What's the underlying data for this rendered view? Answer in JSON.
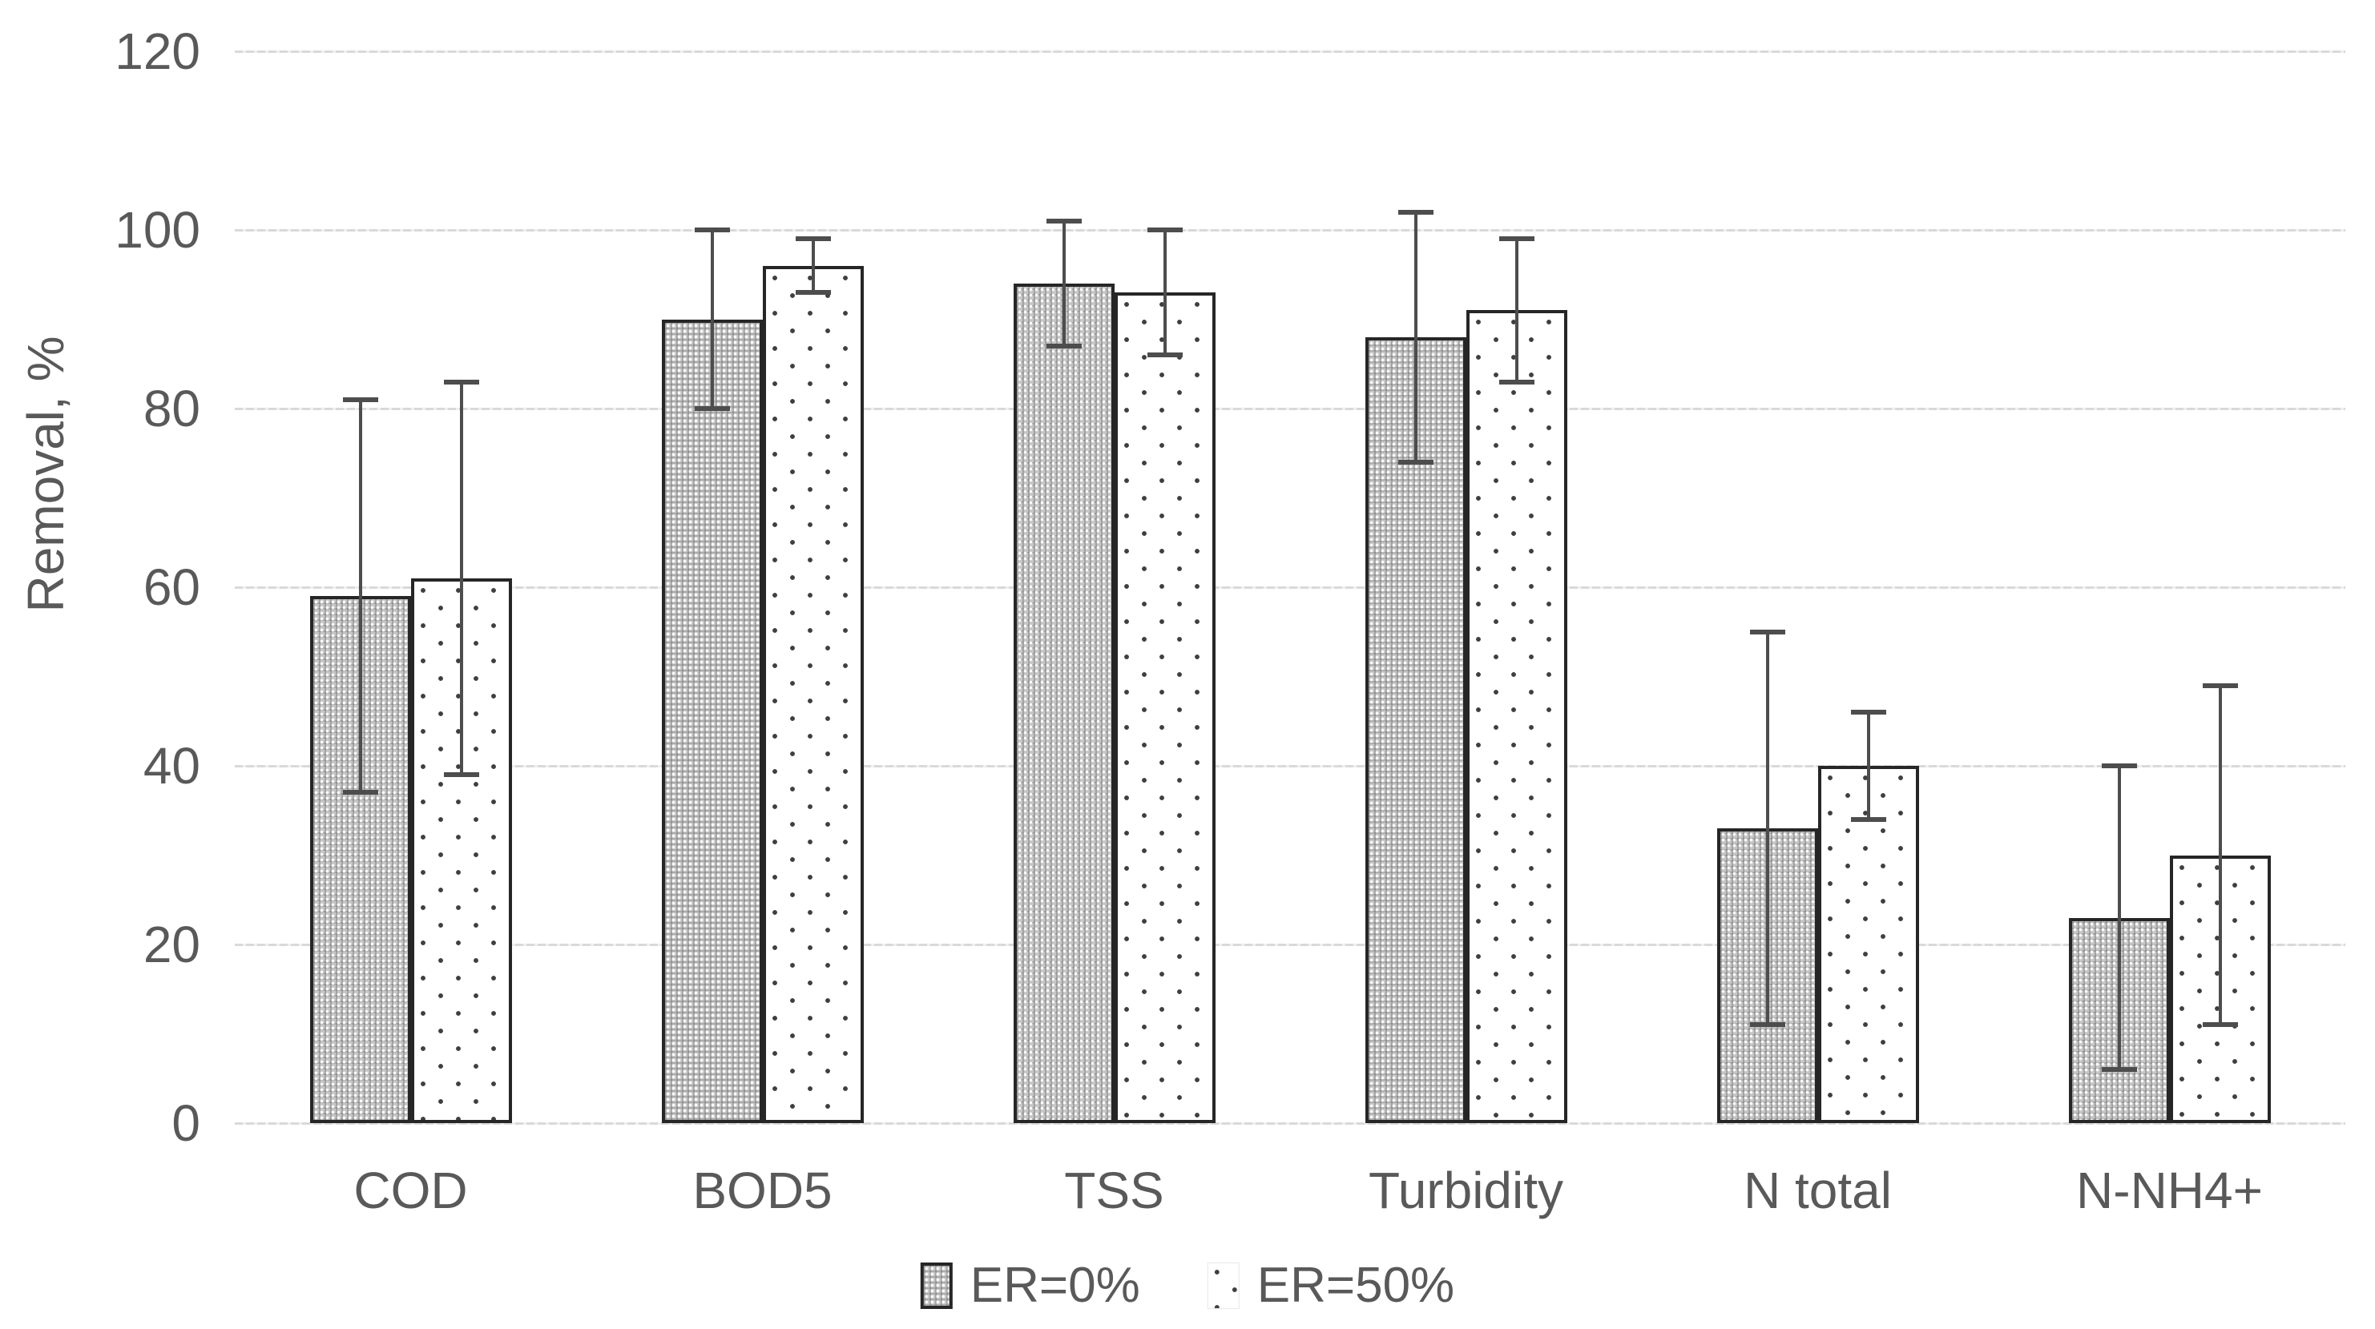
{
  "chart_data": {
    "type": "bar",
    "title": "",
    "xlabel": "",
    "ylabel": "Removal, %",
    "ylim": [
      0,
      120
    ],
    "ytick_step": 20,
    "ytick_labels": [
      "0",
      "20",
      "40",
      "60",
      "80",
      "100",
      "120"
    ],
    "grid": "horizontal",
    "legend_position": "bottom-center",
    "categories": [
      "COD",
      "BOD5",
      "TSS",
      "Turbidity",
      "N total",
      "N-NH4+"
    ],
    "series": [
      {
        "name": "ER=0%",
        "pattern": "gray-weave",
        "values": [
          59,
          90,
          94,
          88,
          33,
          23
        ],
        "err_low": [
          37,
          80,
          87,
          74,
          11,
          6
        ],
        "err_high": [
          81,
          100,
          101,
          102,
          55,
          40
        ]
      },
      {
        "name": "ER=50%",
        "pattern": "white-dots",
        "values": [
          61,
          96,
          93,
          91,
          40,
          30
        ],
        "err_low": [
          39,
          93,
          86,
          83,
          34,
          11
        ],
        "err_high": [
          83,
          99,
          100,
          99,
          46,
          49
        ]
      }
    ]
  },
  "colors": {
    "text": "#595959",
    "gridline": "#d9d9d9",
    "bar_border": "#262626",
    "error_bar": "#4d4d4d",
    "series_a_fill": "#c6c6c6",
    "series_b_dot": "#3f3f3f",
    "background": "#ffffff"
  }
}
